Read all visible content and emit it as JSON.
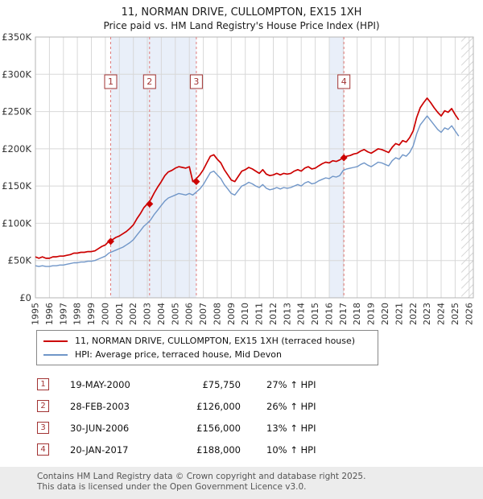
{
  "title": "11, NORMAN DRIVE, CULLOMPTON, EX15 1XH",
  "subtitle": "Price paid vs. HM Land Registry's House Price Index (HPI)",
  "chart_data": {
    "type": "line",
    "title": "11, NORMAN DRIVE, CULLOMPTON, EX15 1XH",
    "subtitle": "Price paid vs. HM Land Registry's House Price Index (HPI)",
    "x_range": [
      1995,
      2026.3
    ],
    "y_range": [
      0,
      350000
    ],
    "ylabel": "",
    "xlabel": "",
    "grid": true,
    "y_ticks": [
      0,
      50000,
      100000,
      150000,
      200000,
      250000,
      300000,
      350000
    ],
    "y_tick_labels": [
      "£0",
      "£50K",
      "£100K",
      "£150K",
      "£200K",
      "£250K",
      "£300K",
      "£350K"
    ],
    "x_ticks": [
      1995,
      1996,
      1997,
      1998,
      1999,
      2000,
      2001,
      2002,
      2003,
      2004,
      2005,
      2006,
      2007,
      2008,
      2009,
      2010,
      2011,
      2012,
      2013,
      2014,
      2015,
      2016,
      2017,
      2018,
      2019,
      2020,
      2021,
      2022,
      2023,
      2024,
      2025,
      2026
    ],
    "x_start": 1995.0,
    "x_step": 0.25,
    "series": [
      {
        "name": "11, NORMAN DRIVE, CULLOMPTON, EX15 1XH (terraced house)",
        "color": "#cc0000",
        "values": [
          55000,
          53000,
          55000,
          53000,
          53000,
          55000,
          55000,
          56000,
          56000,
          57000,
          58000,
          60000,
          60000,
          61000,
          61000,
          62000,
          62000,
          63000,
          66000,
          69000,
          71000,
          75750,
          78000,
          81000,
          83000,
          86000,
          89000,
          93000,
          98000,
          106000,
          113000,
          121000,
          126000,
          132000,
          141000,
          149000,
          156000,
          164000,
          169000,
          171000,
          174000,
          176000,
          175000,
          174000,
          176000,
          156000,
          160000,
          165000,
          172000,
          181000,
          190000,
          192000,
          186000,
          181000,
          172000,
          165000,
          158000,
          156000,
          163000,
          170000,
          172000,
          175000,
          173000,
          170000,
          167000,
          172000,
          166000,
          164000,
          165000,
          167000,
          165000,
          167000,
          166000,
          167000,
          170000,
          172000,
          170000,
          174000,
          176000,
          173000,
          174000,
          177000,
          180000,
          182000,
          181000,
          184000,
          183000,
          185000,
          188000,
          190000,
          191000,
          193000,
          194000,
          197000,
          199000,
          196000,
          194000,
          197000,
          200000,
          199000,
          197000,
          195000,
          202000,
          207000,
          205000,
          211000,
          209000,
          215000,
          224000,
          242000,
          255000,
          262000,
          268000,
          262000,
          255000,
          249000,
          244000,
          251000,
          249000,
          254000,
          246000,
          239000
        ]
      },
      {
        "name": "HPI: Average price, terraced house, Mid Devon",
        "color": "#7096c8",
        "values": [
          43000,
          42000,
          43000,
          42000,
          42000,
          43000,
          43000,
          44000,
          44000,
          45000,
          46000,
          47000,
          47000,
          48000,
          48000,
          49000,
          49000,
          50000,
          52000,
          54000,
          56000,
          60000,
          62000,
          64000,
          66000,
          68000,
          71000,
          74000,
          78000,
          84000,
          90000,
          96000,
          100000,
          105000,
          112000,
          118000,
          124000,
          130000,
          134000,
          136000,
          138000,
          140000,
          139000,
          138000,
          140000,
          138000,
          142000,
          146000,
          152000,
          160000,
          168000,
          170000,
          165000,
          160000,
          152000,
          146000,
          140000,
          138000,
          144000,
          150000,
          152000,
          155000,
          153000,
          150000,
          148000,
          152000,
          147000,
          145000,
          146000,
          148000,
          146000,
          148000,
          147000,
          148000,
          150000,
          152000,
          150000,
          154000,
          156000,
          153000,
          154000,
          157000,
          159000,
          161000,
          160000,
          163000,
          162000,
          164000,
          171000,
          173000,
          174000,
          175000,
          176000,
          179000,
          181000,
          178000,
          176000,
          179000,
          182000,
          181000,
          179000,
          177000,
          184000,
          188000,
          186000,
          192000,
          190000,
          195000,
          204000,
          220000,
          232000,
          238000,
          244000,
          238000,
          232000,
          226000,
          222000,
          228000,
          226000,
          231000,
          224000,
          217000
        ]
      }
    ],
    "sales": [
      {
        "n": "1",
        "x": 2000.38,
        "price": 75750
      },
      {
        "n": "2",
        "x": 2003.16,
        "price": 126000
      },
      {
        "n": "3",
        "x": 2006.5,
        "price": 156000
      },
      {
        "n": "4",
        "x": 2017.05,
        "price": 188000
      }
    ],
    "bands": [
      [
        2000.38,
        2006.5
      ],
      [
        2016.0,
        2017.05
      ]
    ],
    "band_color": "#e9eff9",
    "future_hatch": [
      2025.45,
      2026.3
    ],
    "marker_row_value": 290000,
    "colors": {
      "grid": "#d8d8d8",
      "plot_border": "#b5b5b5",
      "sale_line": "#e07b7b",
      "badge": "#a23333",
      "axis_text": "#333333"
    },
    "legend_position": "bottom-left"
  },
  "legend": {
    "items": [
      {
        "label": "11, NORMAN DRIVE, CULLOMPTON, EX15 1XH (terraced house)",
        "color": "#cc0000"
      },
      {
        "label": "HPI: Average price, terraced house, Mid Devon",
        "color": "#7096c8"
      }
    ]
  },
  "table": {
    "rows": [
      {
        "n": "1",
        "date": "19-MAY-2000",
        "price": "£75,750",
        "hpi": "27% ↑ HPI"
      },
      {
        "n": "2",
        "date": "28-FEB-2003",
        "price": "£126,000",
        "hpi": "26% ↑ HPI"
      },
      {
        "n": "3",
        "date": "30-JUN-2006",
        "price": "£156,000",
        "hpi": "13% ↑ HPI"
      },
      {
        "n": "4",
        "date": "20-JAN-2017",
        "price": "£188,000",
        "hpi": "10% ↑ HPI"
      }
    ]
  },
  "footer": {
    "line1": "Contains HM Land Registry data © Crown copyright and database right 2025.",
    "line2": "This data is licensed under the Open Government Licence v3.0."
  }
}
